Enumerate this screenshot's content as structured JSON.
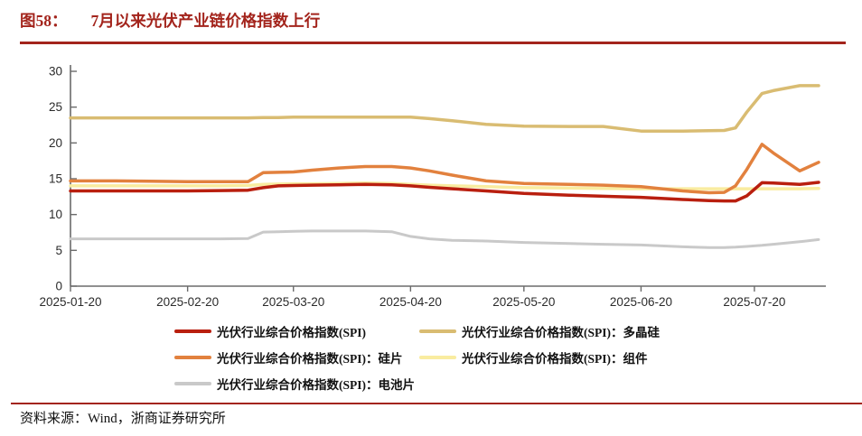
{
  "figure": {
    "label": "图58：",
    "title": "7月以来光伏产业链价格指数上行",
    "source_label": "资料来源：",
    "source": "Wind，浙商证券研究所"
  },
  "colors": {
    "accent_red": "#A3241C",
    "axis": "#6b6b6b",
    "tick_text": "#2b2b2b"
  },
  "chart_data": {
    "type": "line",
    "title": "",
    "xlabel": "",
    "ylabel": "",
    "grid": false,
    "legend_position": "bottom",
    "ylim": [
      0,
      30
    ],
    "y_ticks": [
      0,
      5,
      10,
      15,
      20,
      25,
      30
    ],
    "x_tick_labels": [
      "2025-01-20",
      "2025-02-20",
      "2025-03-20",
      "2025-04-20",
      "2025-05-20",
      "2025-06-20",
      "2025-07-20"
    ],
    "x_tick_days": [
      0,
      31,
      59,
      90,
      120,
      151,
      181
    ],
    "x_max_day": 198,
    "sample_dates": [
      "2025-01-20",
      "2025-02-01",
      "2025-02-10",
      "2025-02-20",
      "2025-03-01",
      "2025-03-08",
      "2025-03-12",
      "2025-03-16",
      "2025-03-20",
      "2025-03-25",
      "2025-04-01",
      "2025-04-08",
      "2025-04-15",
      "2025-04-20",
      "2025-04-25",
      "2025-05-01",
      "2025-05-10",
      "2025-05-20",
      "2025-06-01",
      "2025-06-10",
      "2025-06-20",
      "2025-07-01",
      "2025-07-08",
      "2025-07-12",
      "2025-07-15",
      "2025-07-18",
      "2025-07-22",
      "2025-07-25",
      "2025-08-01",
      "2025-08-06"
    ],
    "sample_days": [
      0,
      12,
      21,
      31,
      40,
      47,
      51,
      55,
      59,
      64,
      71,
      78,
      85,
      90,
      95,
      101,
      110,
      120,
      132,
      141,
      151,
      162,
      169,
      173,
      176,
      179,
      183,
      186,
      193,
      198
    ],
    "series": [
      {
        "name": "光伏行业综合价格指数(SPI)",
        "color": "#B91F0F",
        "values": [
          13.3,
          13.3,
          13.3,
          13.3,
          13.35,
          13.4,
          13.75,
          14.0,
          14.05,
          14.1,
          14.15,
          14.2,
          14.15,
          14.0,
          13.8,
          13.6,
          13.3,
          12.95,
          12.7,
          12.55,
          12.4,
          12.1,
          11.95,
          11.9,
          11.9,
          12.6,
          14.45,
          14.4,
          14.2,
          14.5
        ]
      },
      {
        "name": "光伏行业综合价格指数(SPI)：硅片",
        "color": "#E2813E",
        "values": [
          14.7,
          14.7,
          14.65,
          14.6,
          14.6,
          14.6,
          15.85,
          15.9,
          15.95,
          16.2,
          16.5,
          16.7,
          16.7,
          16.5,
          16.1,
          15.5,
          14.7,
          14.35,
          14.2,
          14.1,
          13.9,
          13.3,
          13.05,
          13.1,
          14.0,
          16.3,
          19.8,
          18.6,
          16.1,
          17.3
        ]
      },
      {
        "name": "光伏行业综合价格指数(SPI)：电池片",
        "color": "#C9C9C9",
        "values": [
          6.6,
          6.6,
          6.6,
          6.6,
          6.6,
          6.65,
          7.55,
          7.6,
          7.65,
          7.7,
          7.7,
          7.7,
          7.6,
          6.95,
          6.6,
          6.4,
          6.3,
          6.1,
          5.95,
          5.85,
          5.75,
          5.5,
          5.4,
          5.4,
          5.45,
          5.55,
          5.7,
          5.85,
          6.2,
          6.5
        ]
      },
      {
        "name": "光伏行业综合价格指数(SPI)：多晶硅",
        "color": "#D9BC72",
        "values": [
          23.5,
          23.5,
          23.5,
          23.5,
          23.5,
          23.5,
          23.55,
          23.55,
          23.6,
          23.6,
          23.6,
          23.6,
          23.6,
          23.6,
          23.4,
          23.1,
          22.6,
          22.35,
          22.3,
          22.3,
          21.65,
          21.65,
          21.7,
          21.75,
          22.1,
          24.3,
          26.9,
          27.3,
          28.0,
          28.0
        ]
      },
      {
        "name": "光伏行业综合价格指数(SPI)：组件",
        "color": "#F9ECA0",
        "values": [
          14.0,
          14.0,
          14.0,
          14.0,
          14.0,
          14.05,
          14.2,
          14.25,
          14.3,
          14.3,
          14.35,
          14.4,
          14.35,
          14.2,
          14.1,
          14.0,
          13.9,
          13.75,
          13.7,
          13.65,
          13.6,
          13.6,
          13.6,
          13.6,
          13.6,
          13.6,
          13.6,
          13.6,
          13.6,
          13.65
        ]
      }
    ],
    "draw_order": [
      2,
      4,
      3,
      1,
      0
    ]
  }
}
